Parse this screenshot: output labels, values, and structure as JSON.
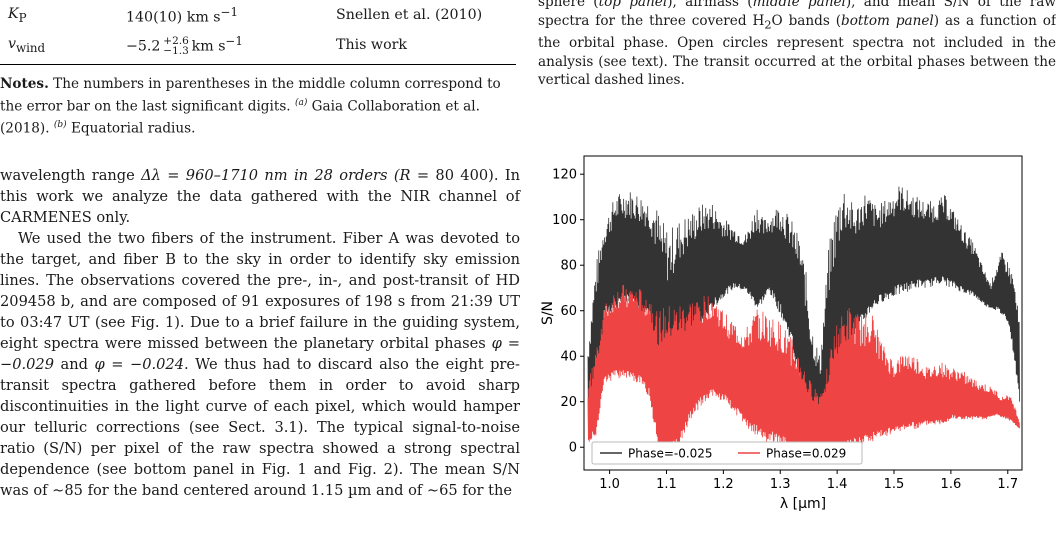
{
  "table": {
    "rows": [
      {
        "param_symbol": "K",
        "param_sub": "P",
        "value_main": "140(10)",
        "value_unit": "km s",
        "value_exp": "−1",
        "ref": "Snellen et al. (2010)"
      },
      {
        "param_symbol": "v",
        "param_sub": "wind",
        "value_main": "−5.2",
        "value_sup": "+2.6",
        "value_sub": "−1.3",
        "value_unit": "km s",
        "value_exp": "−1",
        "ref": "This work"
      }
    ]
  },
  "notes": {
    "label": "Notes.",
    "text1": " The numbers in parentheses in the middle column correspond to the error bar on the last significant digits. ",
    "marker_a": "(a)",
    "text2": " Gaia Collaboration et al. (2018). ",
    "marker_b": "(b)",
    "text3": " Equatorial radius."
  },
  "body": {
    "p1a": "wavelength range ",
    "p1_delta": "Δλ = 960–1710 nm in 28 orders (",
    "p1_R": "R",
    "p1b": " = 80 400). In this work we analyze the data gathered with the NIR channel of CARMENES only.",
    "p2a": "We used the two fibers of the instrument. Fiber A was devoted to the target, and fiber B to the sky in order to identify sky emission lines. The observations covered the pre-, in-, and post-transit of HD 209458 b, and are composed of 91 exposures of 198 s from 21:39 UT to 03:47 UT (see Fig. 1). Due to a brief failure in the guiding system, eight spectra were missed between the planetary orbital phases ",
    "p2_phi1": "φ = −0.029",
    "p2_and": " and ",
    "p2_phi2": "φ = −0.024",
    "p2b": ". We thus had to discard also the eight pre-transit spectra gathered before them in order to avoid sharp discontinuities in the light curve of each pixel, which would hamper our telluric corrections (see Sect. 3.1). The typical signal-to-noise ratio (S/N) per pixel of the raw spectra showed a strong spectral dependence (see bottom panel in Fig. 1 and Fig. 2). The mean S/N was of ∼85 for the band centered around 1.15 µm and of ∼65 for the"
  },
  "caption": {
    "t1": "sphere (",
    "e1": "top panel",
    "t2": "), airmass (",
    "e2": "middle panel",
    "t3": "), and mean S/N of the raw spectra for the three covered H",
    "sub2": "2",
    "t4": "O bands (",
    "e3": "bottom panel",
    "t5": ") as a function of the orbital phase. Open circles represent spectra not included in the analysis (see text). The transit occurred at the orbital phases between the vertical dashed lines."
  },
  "chart_data": {
    "type": "line",
    "xlabel": "λ [μm]",
    "ylabel": "S/N",
    "xlim": [
      0.955,
      1.725
    ],
    "ylim": [
      -10,
      128
    ],
    "xticks": [
      1.0,
      1.1,
      1.2,
      1.3,
      1.4,
      1.5,
      1.6,
      1.7
    ],
    "yticks": [
      0,
      20,
      40,
      60,
      80,
      100,
      120
    ],
    "legend_position": "bottom-left",
    "series": [
      {
        "name": "Phase=-0.025",
        "color": "#333333",
        "upper_envelope": [
          [
            0.962,
            45
          ],
          [
            0.975,
            80
          ],
          [
            0.99,
            98
          ],
          [
            1.01,
            111
          ],
          [
            1.03,
            114
          ],
          [
            1.05,
            112
          ],
          [
            1.065,
            110
          ],
          [
            1.08,
            108
          ],
          [
            1.095,
            99
          ],
          [
            1.105,
            96
          ],
          [
            1.12,
            100
          ],
          [
            1.14,
            103
          ],
          [
            1.16,
            107
          ],
          [
            1.18,
            108
          ],
          [
            1.2,
            101
          ],
          [
            1.22,
            97
          ],
          [
            1.24,
            94
          ],
          [
            1.26,
            108
          ],
          [
            1.27,
            100
          ],
          [
            1.285,
            104
          ],
          [
            1.3,
            108
          ],
          [
            1.32,
            100
          ],
          [
            1.335,
            92
          ],
          [
            1.345,
            78
          ],
          [
            1.355,
            55
          ],
          [
            1.37,
            40
          ],
          [
            1.385,
            88
          ],
          [
            1.395,
            104
          ],
          [
            1.41,
            118
          ],
          [
            1.42,
            112
          ],
          [
            1.43,
            105
          ],
          [
            1.45,
            113
          ],
          [
            1.47,
            106
          ],
          [
            1.49,
            110
          ],
          [
            1.51,
            116
          ],
          [
            1.53,
            112
          ],
          [
            1.55,
            109
          ],
          [
            1.57,
            108
          ],
          [
            1.59,
            111
          ],
          [
            1.61,
            102
          ],
          [
            1.625,
            95
          ],
          [
            1.64,
            90
          ],
          [
            1.655,
            80
          ],
          [
            1.67,
            72
          ],
          [
            1.68,
            80
          ],
          [
            1.69,
            86
          ],
          [
            1.7,
            82
          ],
          [
            1.71,
            76
          ],
          [
            1.72,
            57
          ]
        ],
        "lower_envelope": [
          [
            0.962,
            6
          ],
          [
            0.975,
            12
          ],
          [
            0.99,
            58
          ],
          [
            1.01,
            60
          ],
          [
            1.03,
            62
          ],
          [
            1.05,
            60
          ],
          [
            1.07,
            55
          ],
          [
            1.085,
            8
          ],
          [
            1.095,
            -3
          ],
          [
            1.105,
            -2
          ],
          [
            1.12,
            22
          ],
          [
            1.14,
            40
          ],
          [
            1.16,
            52
          ],
          [
            1.18,
            60
          ],
          [
            1.2,
            66
          ],
          [
            1.22,
            70
          ],
          [
            1.24,
            68
          ],
          [
            1.26,
            60
          ],
          [
            1.28,
            68
          ],
          [
            1.3,
            58
          ],
          [
            1.32,
            45
          ],
          [
            1.335,
            22
          ],
          [
            1.345,
            5
          ],
          [
            1.355,
            -2
          ],
          [
            1.37,
            -3
          ],
          [
            1.385,
            -3
          ],
          [
            1.4,
            8
          ],
          [
            1.42,
            40
          ],
          [
            1.44,
            52
          ],
          [
            1.46,
            60
          ],
          [
            1.48,
            64
          ],
          [
            1.5,
            66
          ],
          [
            1.52,
            68
          ],
          [
            1.54,
            70
          ],
          [
            1.56,
            70
          ],
          [
            1.58,
            72
          ],
          [
            1.6,
            70
          ],
          [
            1.62,
            68
          ],
          [
            1.64,
            66
          ],
          [
            1.66,
            62
          ],
          [
            1.68,
            60
          ],
          [
            1.7,
            55
          ],
          [
            1.71,
            40
          ],
          [
            1.72,
            20
          ]
        ]
      },
      {
        "name": "Phase=0.029",
        "color": "#ee4444",
        "upper_envelope": [
          [
            0.962,
            28
          ],
          [
            0.975,
            42
          ],
          [
            0.99,
            62
          ],
          [
            1.01,
            70
          ],
          [
            1.03,
            72
          ],
          [
            1.05,
            70
          ],
          [
            1.07,
            68
          ],
          [
            1.085,
            60
          ],
          [
            1.1,
            62
          ],
          [
            1.12,
            63
          ],
          [
            1.14,
            65
          ],
          [
            1.16,
            66
          ],
          [
            1.18,
            68
          ],
          [
            1.2,
            60
          ],
          [
            1.22,
            55
          ],
          [
            1.24,
            52
          ],
          [
            1.26,
            62
          ],
          [
            1.28,
            58
          ],
          [
            1.3,
            55
          ],
          [
            1.32,
            48
          ],
          [
            1.335,
            40
          ],
          [
            1.35,
            30
          ],
          [
            1.37,
            25
          ],
          [
            1.385,
            40
          ],
          [
            1.4,
            55
          ],
          [
            1.42,
            62
          ],
          [
            1.44,
            58
          ],
          [
            1.46,
            60
          ],
          [
            1.48,
            45
          ],
          [
            1.5,
            38
          ],
          [
            1.52,
            42
          ],
          [
            1.54,
            40
          ],
          [
            1.56,
            35
          ],
          [
            1.58,
            38
          ],
          [
            1.6,
            35
          ],
          [
            1.62,
            34
          ],
          [
            1.64,
            30
          ],
          [
            1.66,
            28
          ],
          [
            1.68,
            25
          ],
          [
            1.69,
            22
          ],
          [
            1.7,
            24
          ],
          [
            1.71,
            20
          ],
          [
            1.72,
            12
          ]
        ],
        "lower_envelope": [
          [
            0.962,
            2
          ],
          [
            0.975,
            5
          ],
          [
            0.99,
            28
          ],
          [
            1.01,
            30
          ],
          [
            1.03,
            30
          ],
          [
            1.05,
            28
          ],
          [
            1.07,
            22
          ],
          [
            1.085,
            -3
          ],
          [
            1.1,
            -4
          ],
          [
            1.12,
            -2
          ],
          [
            1.14,
            10
          ],
          [
            1.16,
            18
          ],
          [
            1.18,
            22
          ],
          [
            1.2,
            20
          ],
          [
            1.22,
            15
          ],
          [
            1.24,
            8
          ],
          [
            1.26,
            4
          ],
          [
            1.28,
            2
          ],
          [
            1.3,
            0
          ],
          [
            1.32,
            -2
          ],
          [
            1.34,
            -4
          ],
          [
            1.36,
            -4
          ],
          [
            1.38,
            -4
          ],
          [
            1.4,
            -4
          ],
          [
            1.42,
            -3
          ],
          [
            1.44,
            0
          ],
          [
            1.46,
            2
          ],
          [
            1.48,
            4
          ],
          [
            1.5,
            6
          ],
          [
            1.52,
            8
          ],
          [
            1.54,
            8
          ],
          [
            1.56,
            10
          ],
          [
            1.58,
            10
          ],
          [
            1.6,
            12
          ],
          [
            1.62,
            12
          ],
          [
            1.64,
            12
          ],
          [
            1.66,
            12
          ],
          [
            1.68,
            14
          ],
          [
            1.7,
            12
          ],
          [
            1.71,
            10
          ],
          [
            1.72,
            8
          ]
        ]
      }
    ]
  }
}
